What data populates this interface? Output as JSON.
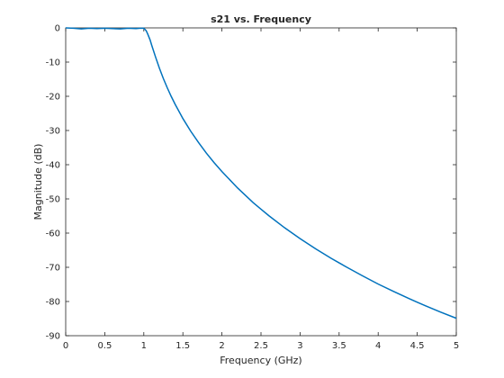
{
  "chart_data": {
    "type": "line",
    "title": "s21 vs. Frequency",
    "xlabel": "Frequency (GHz)",
    "ylabel": "Magnitude (dB)",
    "xlim": [
      0,
      5
    ],
    "ylim": [
      -90,
      0
    ],
    "xticks": [
      0,
      0.5,
      1,
      1.5,
      2,
      2.5,
      3,
      3.5,
      4,
      4.5,
      5
    ],
    "xtick_labels": [
      "0",
      "0.5",
      "1",
      "1.5",
      "2",
      "2.5",
      "3",
      "3.5",
      "4",
      "4.5",
      "5"
    ],
    "yticks": [
      0,
      -10,
      -20,
      -30,
      -40,
      -50,
      -60,
      -70,
      -80,
      -90
    ],
    "ytick_labels": [
      "0",
      "-10",
      "-20",
      "-30",
      "-40",
      "-50",
      "-60",
      "-70",
      "-80",
      "-90"
    ],
    "grid": true,
    "series": [
      {
        "color": "#0072bd",
        "x": [
          0,
          0.1,
          0.2,
          0.3,
          0.4,
          0.5,
          0.6,
          0.7,
          0.8,
          0.9,
          0.95,
          1.0,
          1.03,
          1.05,
          1.08,
          1.1,
          1.15,
          1.2,
          1.25,
          1.3,
          1.35,
          1.4,
          1.5,
          1.6,
          1.7,
          1.8,
          1.9,
          2.0,
          2.2,
          2.4,
          2.5,
          2.6,
          2.8,
          3.0,
          3.2,
          3.4,
          3.5,
          3.6,
          3.8,
          4.0,
          4.2,
          4.4,
          4.5,
          4.6,
          4.8,
          5.0
        ],
        "y": [
          0,
          -0.1,
          -0.3,
          -0.1,
          -0.2,
          -0.1,
          -0.2,
          -0.3,
          -0.1,
          -0.2,
          -0.1,
          -0.1,
          -0.8,
          -1.8,
          -3.5,
          -5.0,
          -8.5,
          -11.8,
          -14.8,
          -17.5,
          -20.0,
          -22.3,
          -26.5,
          -30.2,
          -33.5,
          -36.6,
          -39.4,
          -42.0,
          -46.8,
          -51.1,
          -53.0,
          -54.9,
          -58.4,
          -61.6,
          -64.6,
          -67.4,
          -68.7,
          -70.0,
          -72.5,
          -74.9,
          -77.1,
          -79.2,
          -80.2,
          -81.2,
          -83.1,
          -84.9
        ]
      }
    ]
  }
}
